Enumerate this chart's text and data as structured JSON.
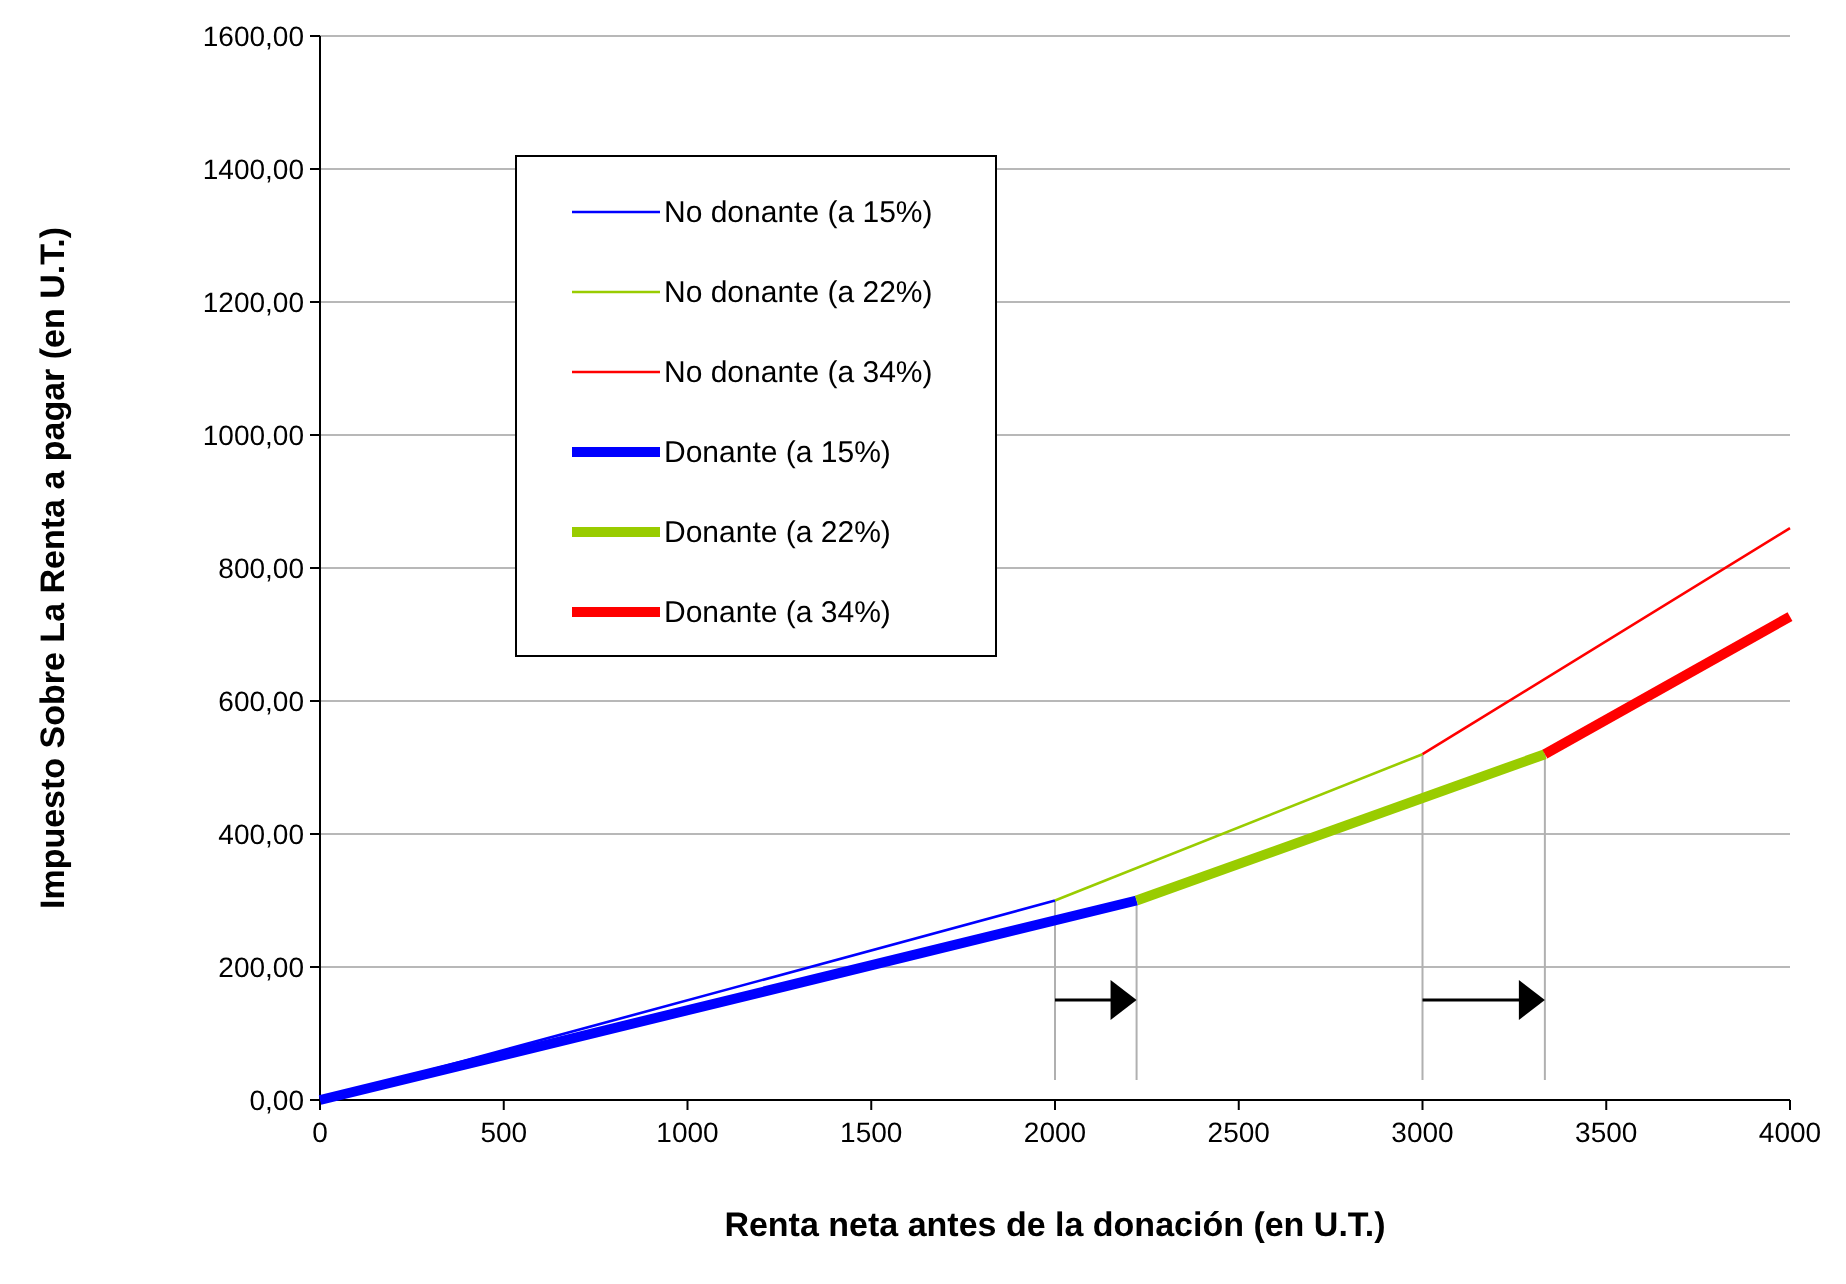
{
  "chart_data": {
    "type": "line",
    "xlabel": "Renta neta antes de la donación (en U.T.)",
    "ylabel": "Impuesto Sobre La Renta a pagar (en U.T.)",
    "xlim": [
      0,
      4000
    ],
    "xticks": [
      0,
      500,
      1000,
      1500,
      2000,
      2500,
      3000,
      3500,
      4000
    ],
    "ylim": [
      0,
      1600
    ],
    "yticks": [
      {
        "value": 0,
        "label": "0,00"
      },
      {
        "value": 200,
        "label": "200,00"
      },
      {
        "value": 400,
        "label": "400,00"
      },
      {
        "value": 600,
        "label": "600,00"
      },
      {
        "value": 800,
        "label": "800,00"
      },
      {
        "value": 1000,
        "label": "1000,00"
      },
      {
        "value": 1200,
        "label": "1200,00"
      },
      {
        "value": 1400,
        "label": "1400,00"
      },
      {
        "value": 1600,
        "label": "1600,00"
      }
    ],
    "grid": "y",
    "legend": "top left",
    "line_style": "solid",
    "series": [
      {
        "name": "No donante (a 15%)",
        "color": "#0000ff",
        "x": [
          0,
          2000
        ],
        "values": [
          0,
          300
        ]
      },
      {
        "name": "No donante (a 22%)",
        "color": "#99cc00",
        "x": [
          2000,
          3000
        ],
        "values": [
          300,
          520
        ]
      },
      {
        "name": "No donante (a 34%)",
        "color": "#ff0000",
        "x": [
          3000,
          4000
        ],
        "values": [
          520,
          860
        ]
      },
      {
        "name": "Donante (a 15%)",
        "color": "#0000ff",
        "x": [
          0,
          2222
        ],
        "values": [
          0,
          300
        ]
      },
      {
        "name": "Donante (a 22%)",
        "color": "#99cc00",
        "x": [
          2222,
          3333
        ],
        "values": [
          300,
          520
        ]
      },
      {
        "name": "Donante (a 34%)",
        "color": "#ff0000",
        "x": [
          3333,
          4000
        ],
        "values": [
          520,
          727
        ]
      }
    ]
  }
}
